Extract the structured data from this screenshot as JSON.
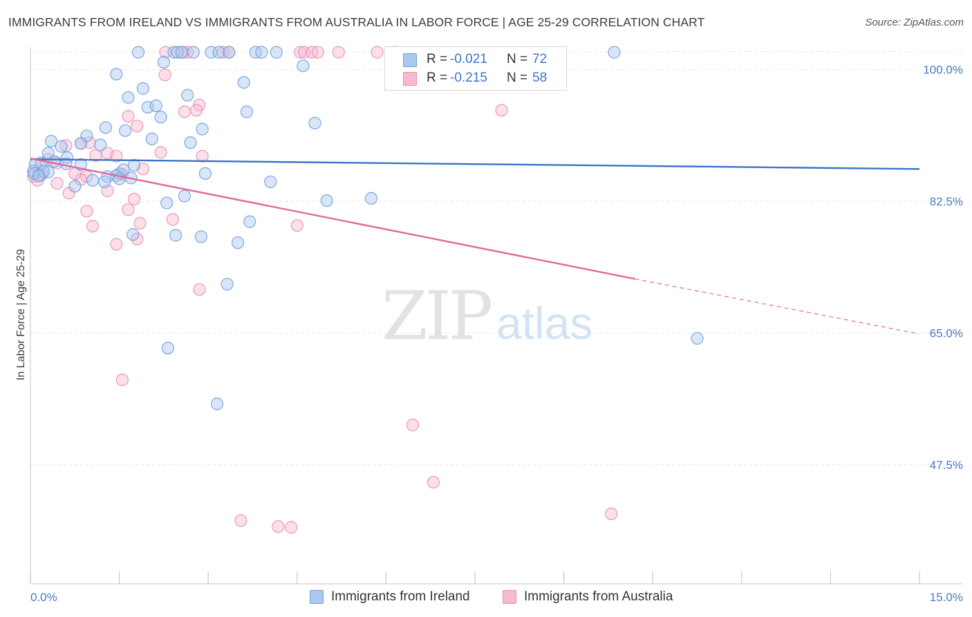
{
  "title": "IMMIGRANTS FROM IRELAND VS IMMIGRANTS FROM AUSTRALIA IN LABOR FORCE | AGE 25-29 CORRELATION CHART",
  "source": "Source: ZipAtlas.com",
  "watermark": {
    "zip": "ZIP",
    "atlas": "atlas"
  },
  "colors": {
    "ireland_fill": "#aac8f0",
    "ireland_stroke": "#6f9fdc",
    "ireland_line": "#3a73c8",
    "australia_fill": "#f7b9cf",
    "australia_stroke": "#e98fb0",
    "australia_line": "#e0689a",
    "grid": "#e4e4e4",
    "tick_text": "#4a78c2"
  },
  "legend": {
    "rows": [
      {
        "r_label": "R =",
        "r_value": "-0.021",
        "n_label": "N =",
        "n_value": "72"
      },
      {
        "r_label": "R =",
        "r_value": "-0.215",
        "n_label": "N =",
        "n_value": "58"
      }
    ]
  },
  "chart_data": {
    "type": "scatter",
    "title": "IMMIGRANTS FROM IRELAND VS IMMIGRANTS FROM AUSTRALIA IN LABOR FORCE | AGE 25-29 CORRELATION CHART",
    "xlabel": "",
    "ylabel": "In Labor Force | Age 25-29",
    "xlim": [
      0,
      15
    ],
    "ylim": [
      31.7,
      103
    ],
    "x_tick_labels": [
      {
        "value": 0,
        "label": "0.0%"
      },
      {
        "value": 15,
        "label": "15.0%"
      }
    ],
    "y_tick_labels": [
      {
        "value": 100,
        "label": "100.0%"
      },
      {
        "value": 82.5,
        "label": "82.5%"
      },
      {
        "value": 65,
        "label": "65.0%"
      },
      {
        "value": 47.5,
        "label": "47.5%"
      }
    ],
    "grid": true,
    "legend_position": "top-center",
    "series": [
      {
        "name": "Immigrants from Ireland",
        "r": -0.021,
        "n": 72,
        "trend": {
          "x": [
            0,
            15
          ],
          "y": [
            88.1,
            86.8
          ]
        },
        "points": [
          [
            1.82,
            102.3
          ],
          [
            2.42,
            102.3
          ],
          [
            2.48,
            102.3
          ],
          [
            2.55,
            102.3
          ],
          [
            2.75,
            102.3
          ],
          [
            3.05,
            102.3
          ],
          [
            3.18,
            102.3
          ],
          [
            3.35,
            102.3
          ],
          [
            3.8,
            102.3
          ],
          [
            3.9,
            102.3
          ],
          [
            4.15,
            102.3
          ],
          [
            9.85,
            102.3
          ],
          [
            2.25,
            101
          ],
          [
            4.6,
            100.5
          ],
          [
            1.45,
            99.4
          ],
          [
            3.6,
            98.3
          ],
          [
            1.9,
            97.5
          ],
          [
            1.65,
            96.3
          ],
          [
            2.65,
            96.6
          ],
          [
            1.98,
            95
          ],
          [
            2.12,
            95.2
          ],
          [
            2.2,
            93.7
          ],
          [
            3.65,
            94.4
          ],
          [
            4.8,
            92.9
          ],
          [
            1.27,
            92.3
          ],
          [
            1.6,
            91.9
          ],
          [
            2.9,
            92.1
          ],
          [
            0.95,
            91.2
          ],
          [
            2.05,
            90.8
          ],
          [
            2.7,
            90.3
          ],
          [
            0.35,
            90.5
          ],
          [
            0.52,
            89.8
          ],
          [
            0.85,
            90.2
          ],
          [
            1.18,
            90
          ],
          [
            0.3,
            88.9
          ],
          [
            0.62,
            88.3
          ],
          [
            0.08,
            87.4
          ],
          [
            0.18,
            87.6
          ],
          [
            0.4,
            87.8
          ],
          [
            0.6,
            87.5
          ],
          [
            0.85,
            87.4
          ],
          [
            1.5,
            86.2
          ],
          [
            1.57,
            86.7
          ],
          [
            0.05,
            86.5
          ],
          [
            0.15,
            85.9
          ],
          [
            1.3,
            85.8
          ],
          [
            1.45,
            85.9
          ],
          [
            1.5,
            85.5
          ],
          [
            1.75,
            87.3
          ],
          [
            1.7,
            85.6
          ],
          [
            1.05,
            85.3
          ],
          [
            1.25,
            85.1
          ],
          [
            0.75,
            84.5
          ],
          [
            0.3,
            86.4
          ],
          [
            2.95,
            86.2
          ],
          [
            4.05,
            85.1
          ],
          [
            2.6,
            83.2
          ],
          [
            2.3,
            82.3
          ],
          [
            5.0,
            82.6
          ],
          [
            5.75,
            82.9
          ],
          [
            3.7,
            79.8
          ],
          [
            1.73,
            78.1
          ],
          [
            2.45,
            78
          ],
          [
            2.88,
            77.8
          ],
          [
            3.5,
            77
          ],
          [
            3.32,
            71.5
          ],
          [
            11.25,
            64.3
          ],
          [
            2.32,
            63
          ],
          [
            3.15,
            55.6
          ],
          [
            0.06,
            86.2
          ],
          [
            0.22,
            86.5
          ],
          [
            0.14,
            85.9
          ]
        ]
      },
      {
        "name": "Immigrants from Australia",
        "r": -0.215,
        "n": 58,
        "trend": {
          "x": [
            0,
            10.2
          ],
          "y": [
            88.2,
            72.2
          ]
        },
        "trend_dashed": {
          "x": [
            10.2,
            15
          ],
          "y": [
            72.2,
            64.9
          ]
        },
        "points": [
          [
            2.28,
            102.3
          ],
          [
            2.58,
            102.3
          ],
          [
            2.65,
            102.3
          ],
          [
            3.25,
            102.3
          ],
          [
            3.35,
            102.3
          ],
          [
            4.55,
            102.3
          ],
          [
            4.62,
            102.3
          ],
          [
            4.75,
            102.3
          ],
          [
            4.85,
            102.3
          ],
          [
            5.2,
            102.3
          ],
          [
            5.85,
            102.3
          ],
          [
            6.15,
            102.3
          ],
          [
            2.27,
            99.3
          ],
          [
            2.85,
            95.3
          ],
          [
            2.8,
            94.6
          ],
          [
            2.6,
            94.4
          ],
          [
            1.65,
            93.8
          ],
          [
            1.8,
            92.5
          ],
          [
            7.95,
            94.6
          ],
          [
            1.0,
            90.3
          ],
          [
            0.85,
            90.2
          ],
          [
            0.6,
            89.9
          ],
          [
            1.3,
            88.9
          ],
          [
            1.45,
            88.5
          ],
          [
            0.3,
            88.1
          ],
          [
            0.45,
            87.6
          ],
          [
            1.1,
            88.6
          ],
          [
            2.2,
            89
          ],
          [
            2.9,
            88.5
          ],
          [
            1.55,
            86.1
          ],
          [
            0.95,
            85.8
          ],
          [
            0.85,
            85.4
          ],
          [
            0.45,
            84.9
          ],
          [
            0.75,
            86.2
          ],
          [
            0.15,
            86.7
          ],
          [
            1.9,
            86.8
          ],
          [
            0.65,
            83.6
          ],
          [
            1.3,
            83.9
          ],
          [
            1.75,
            82.8
          ],
          [
            1.65,
            81.4
          ],
          [
            0.95,
            81.2
          ],
          [
            2.4,
            80.1
          ],
          [
            1.85,
            79.6
          ],
          [
            1.05,
            79.2
          ],
          [
            4.5,
            79.3
          ],
          [
            1.8,
            77.5
          ],
          [
            1.45,
            76.8
          ],
          [
            2.85,
            70.8
          ],
          [
            1.55,
            58.8
          ],
          [
            6.45,
            52.8
          ],
          [
            6.8,
            45.2
          ],
          [
            3.55,
            40.1
          ],
          [
            4.18,
            39.3
          ],
          [
            4.4,
            39.2
          ],
          [
            9.8,
            41
          ],
          [
            0.05,
            85.8
          ],
          [
            0.2,
            86.1
          ],
          [
            0.12,
            85.3
          ]
        ]
      }
    ]
  }
}
